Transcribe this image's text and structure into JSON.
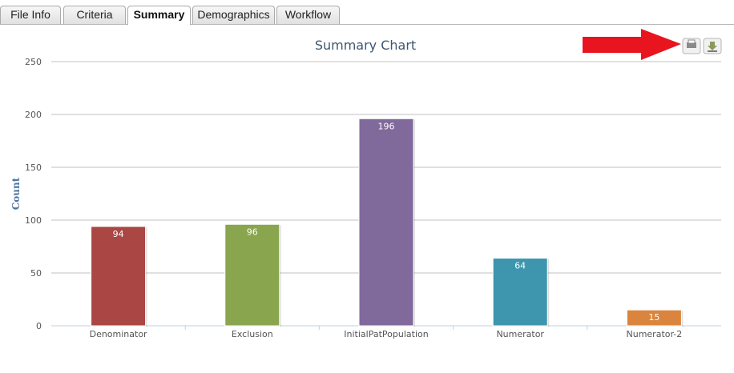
{
  "tabs": [
    {
      "label": "File Info",
      "active": false
    },
    {
      "label": "Criteria",
      "active": false
    },
    {
      "label": "Summary",
      "active": true
    },
    {
      "label": "Demographics",
      "active": false
    },
    {
      "label": "Workflow",
      "active": false
    }
  ],
  "toolbar": {
    "buttons": [
      "print-icon",
      "download-icon"
    ],
    "annotation": "red-arrow pointing to download button"
  },
  "chart_data": {
    "type": "bar",
    "title": "Summary Chart",
    "ylabel": "Count",
    "xlabel": "",
    "ylim": [
      0,
      250
    ],
    "yticks": [
      0,
      50,
      100,
      150,
      200,
      250
    ],
    "grid": true,
    "data_labels": true,
    "categories": [
      "Denominator",
      "Exclusion",
      "InitialPatPopulation",
      "Numerator",
      "Numerator-2"
    ],
    "values": [
      94,
      96,
      196,
      64,
      15
    ],
    "colors": [
      "#aa4643",
      "#89a54e",
      "#80699b",
      "#3d96ae",
      "#db843d"
    ]
  }
}
